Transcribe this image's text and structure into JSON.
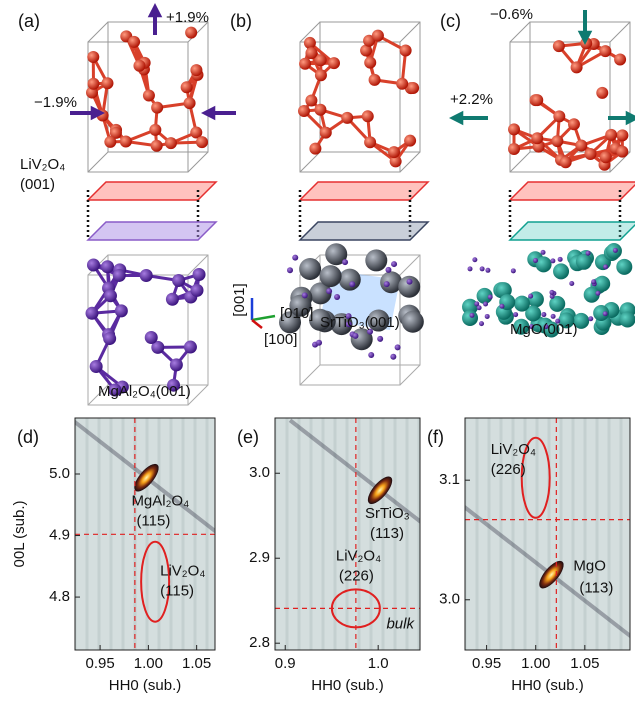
{
  "panels": [
    {
      "label": "(a)",
      "film": [
        "LiV₂O₄",
        "(001)"
      ],
      "substrate": "MgAl₂O₄(001)",
      "strain_out": "+1.9%",
      "strain_in": "−1.9%"
    },
    {
      "label": "(b)",
      "substrate": "SrTiO₃(001)",
      "axes": [
        "[001]",
        "[010]",
        "[100]"
      ]
    },
    {
      "label": "(c)",
      "substrate": "MgO(001)",
      "strain_out": "−0.6%",
      "strain_in": "+2.2%"
    }
  ],
  "chart_data": [
    {
      "type": "heatmap",
      "label": "(d)",
      "xlabel": "HH0 (sub.)",
      "ylabel": "00L (sub.)",
      "xlim": [
        0.924,
        1.069
      ],
      "ylim": [
        4.714,
        5.091
      ],
      "xticks": [
        0.95,
        {
          "value": 1,
          "label": "1.00"
        },
        1.05
      ],
      "yticks": [
        {
          "value": 5,
          "label": "5.0"
        },
        4.9,
        4.8
      ],
      "ref_lines": {
        "x": 0.986,
        "y": 4.902
      },
      "peaks": [
        {
          "label": [
            "MgAl₂O₄",
            "(115)"
          ],
          "x": 0.998,
          "y": 4.994
        }
      ],
      "regions": [
        {
          "label": [
            "LiV₂O₄",
            "(115)"
          ],
          "x": 1.007,
          "y": 4.825
        }
      ]
    },
    {
      "type": "heatmap",
      "label": "(e)",
      "xlabel": "HH0 (sub.)",
      "xlim": [
        0.889,
        1.045
      ],
      "ylim": [
        2.792,
        3.065
      ],
      "xticks": [
        0.9,
        {
          "value": 1,
          "label": "1.0"
        }
      ],
      "yticks": [
        {
          "value": 3,
          "label": "3.0"
        },
        2.9,
        2.8
      ],
      "ref_lines": {
        "x": 0.976,
        "y": 2.841,
        "label": "bulk"
      },
      "peaks": [
        {
          "label": [
            "SrTiO₃",
            "(113)"
          ],
          "x": 1.002,
          "y": 2.98
        }
      ],
      "regions": [
        {
          "label": [
            "LiV₂O₄",
            "(226)"
          ],
          "x": 0.976,
          "y": 2.841
        }
      ]
    },
    {
      "type": "heatmap",
      "label": "(f)",
      "xlabel": "HH0 (sub.)",
      "xlim": [
        0.928,
        1.096
      ],
      "ylim": [
        2.958,
        3.152
      ],
      "xticks": [
        0.95,
        {
          "value": 1,
          "label": "1.00"
        },
        1.05
      ],
      "yticks": [
        3.1,
        {
          "value": 3,
          "label": "3.0"
        }
      ],
      "ref_lines": {
        "x": 1.021,
        "y": 3.067
      },
      "peaks": [
        {
          "label": [
            "MgO",
            "(113)"
          ],
          "x": 1.016,
          "y": 3.021
        }
      ],
      "regions": [
        {
          "label": [
            "LiV₂O₄",
            "(226)"
          ],
          "x": 1.0,
          "y": 3.102
        }
      ]
    }
  ]
}
